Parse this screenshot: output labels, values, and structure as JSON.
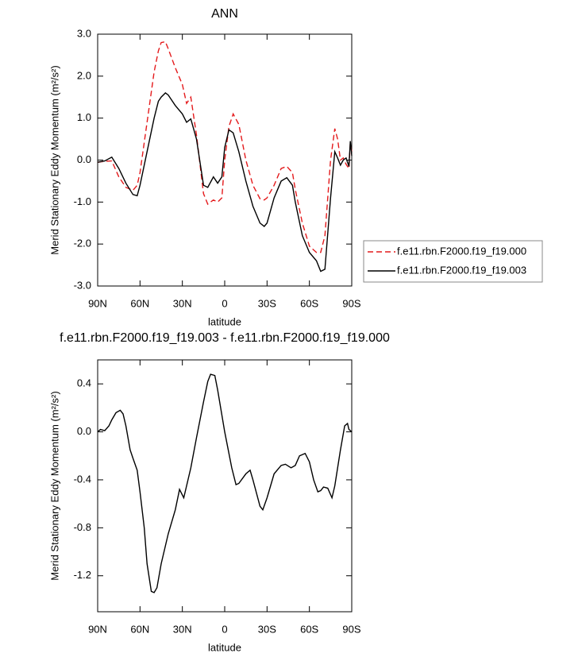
{
  "chart_data": [
    {
      "type": "line",
      "title": "ANN",
      "xlabel": "latitude",
      "ylabel": "Merid Stationary Eddy Momentum (m²/s²)",
      "x": [
        90,
        85,
        80,
        75,
        70,
        65,
        62,
        60,
        55,
        50,
        47,
        45,
        42,
        40,
        35,
        30,
        27,
        24,
        20,
        15,
        12,
        8,
        5,
        2,
        0,
        -3,
        -6,
        -10,
        -15,
        -20,
        -25,
        -28,
        -30,
        -35,
        -40,
        -44,
        -48,
        -50,
        -55,
        -60,
        -65,
        -68,
        -71,
        -75,
        -78,
        -80,
        -82,
        -84,
        -86,
        -88,
        -89,
        -90
      ],
      "series": [
        {
          "name": "f.e11.rbn.F2000.f19_f19.000",
          "color": "#e41a1c",
          "style": "dashed",
          "values": [
            -0.05,
            -0.03,
            -0.02,
            -0.4,
            -0.65,
            -0.72,
            -0.6,
            -0.3,
            0.9,
            2.1,
            2.6,
            2.8,
            2.82,
            2.65,
            2.2,
            1.8,
            1.35,
            1.5,
            0.6,
            -0.8,
            -1.05,
            -0.95,
            -1.0,
            -0.9,
            0.0,
            0.8,
            1.1,
            0.85,
            0.0,
            -0.6,
            -0.92,
            -0.95,
            -0.9,
            -0.6,
            -0.2,
            -0.15,
            -0.3,
            -0.7,
            -1.5,
            -2.05,
            -2.2,
            -2.2,
            -1.8,
            0.0,
            0.75,
            0.5,
            0.0,
            0.05,
            -0.1,
            -0.2,
            0.4,
            0.2
          ]
        },
        {
          "name": "f.e11.rbn.F2000.f19_f19.003",
          "color": "#000000",
          "style": "solid",
          "values": [
            -0.05,
            -0.02,
            0.07,
            -0.2,
            -0.55,
            -0.82,
            -0.85,
            -0.6,
            0.2,
            1.0,
            1.4,
            1.5,
            1.6,
            1.55,
            1.3,
            1.1,
            0.9,
            0.98,
            0.5,
            -0.6,
            -0.65,
            -0.4,
            -0.55,
            -0.4,
            0.3,
            0.72,
            0.65,
            0.2,
            -0.5,
            -1.1,
            -1.5,
            -1.58,
            -1.5,
            -0.9,
            -0.5,
            -0.42,
            -0.6,
            -1.0,
            -1.8,
            -2.2,
            -2.4,
            -2.65,
            -2.6,
            -0.9,
            0.2,
            0.05,
            -0.12,
            0,
            0.05,
            -0.15,
            0.45,
            0.1
          ]
        }
      ],
      "xlim": [
        90,
        -90
      ],
      "xticks": [
        {
          "value": 90,
          "label": "90N"
        },
        {
          "value": 60,
          "label": "60N"
        },
        {
          "value": 30,
          "label": "30N"
        },
        0,
        {
          "value": -30,
          "label": "30S"
        },
        {
          "value": -60,
          "label": "60S"
        },
        {
          "value": -90,
          "label": "90S"
        }
      ],
      "ylim": [
        -3,
        3
      ],
      "yticks": [
        {
          "value": 3,
          "label": "3.0"
        },
        {
          "value": 2,
          "label": "2.0"
        },
        {
          "value": 1,
          "label": "1.0"
        },
        {
          "value": 0,
          "label": "0.0"
        },
        {
          "value": -1,
          "label": "-1.0"
        },
        {
          "value": -2,
          "label": "-2.0"
        },
        {
          "value": -3,
          "label": "-3.0"
        }
      ],
      "legend": "outside right"
    },
    {
      "type": "line",
      "title": "f.e11.rbn.F2000.f19_f19.003 - f.e11.rbn.F2000.f19_f19.000",
      "xlabel": "latitude",
      "ylabel": "Merid Stationary Eddy Momentum (m²/s²)",
      "x": [
        90,
        88,
        85,
        82,
        80,
        77,
        74,
        72,
        70,
        67,
        65,
        62,
        60,
        57,
        55,
        52,
        50,
        48,
        45,
        40,
        35,
        32,
        29,
        27,
        24,
        20,
        15,
        12,
        10,
        7,
        5,
        0,
        -5,
        -8,
        -10,
        -15,
        -18,
        -20,
        -25,
        -27,
        -30,
        -35,
        -40,
        -43,
        -47,
        -50,
        -53,
        -57,
        -60,
        -63,
        -66,
        -68,
        -70,
        -73,
        -76,
        -78,
        -82,
        -85,
        -87,
        -88,
        -90
      ],
      "series": [
        {
          "color": "#000000",
          "style": "solid",
          "values": [
            0.0,
            0.02,
            0.01,
            0.05,
            0.1,
            0.16,
            0.18,
            0.15,
            0.05,
            -0.15,
            -0.22,
            -0.32,
            -0.5,
            -0.8,
            -1.1,
            -1.33,
            -1.34,
            -1.3,
            -1.1,
            -0.85,
            -0.65,
            -0.48,
            -0.55,
            -0.45,
            -0.3,
            -0.05,
            0.25,
            0.42,
            0.48,
            0.47,
            0.35,
            0.0,
            -0.3,
            -0.44,
            -0.43,
            -0.35,
            -0.32,
            -0.4,
            -0.62,
            -0.65,
            -0.55,
            -0.35,
            -0.28,
            -0.27,
            -0.3,
            -0.28,
            -0.2,
            -0.18,
            -0.25,
            -0.4,
            -0.5,
            -0.49,
            -0.46,
            -0.47,
            -0.55,
            -0.45,
            -0.15,
            0.05,
            0.07,
            0.02,
            0.0
          ]
        }
      ],
      "xlim": [
        90,
        -90
      ],
      "xticks": [
        {
          "value": 90,
          "label": "90N"
        },
        {
          "value": 60,
          "label": "60N"
        },
        {
          "value": 30,
          "label": "30N"
        },
        0,
        {
          "value": -30,
          "label": "30S"
        },
        {
          "value": -60,
          "label": "60S"
        },
        {
          "value": -90,
          "label": "90S"
        }
      ],
      "ylim": [
        -1.5,
        0.6
      ],
      "yticks": [
        0.4,
        {
          "value": 0,
          "label": "0.0"
        },
        -0.4,
        -0.8,
        -1.2
      ]
    }
  ]
}
